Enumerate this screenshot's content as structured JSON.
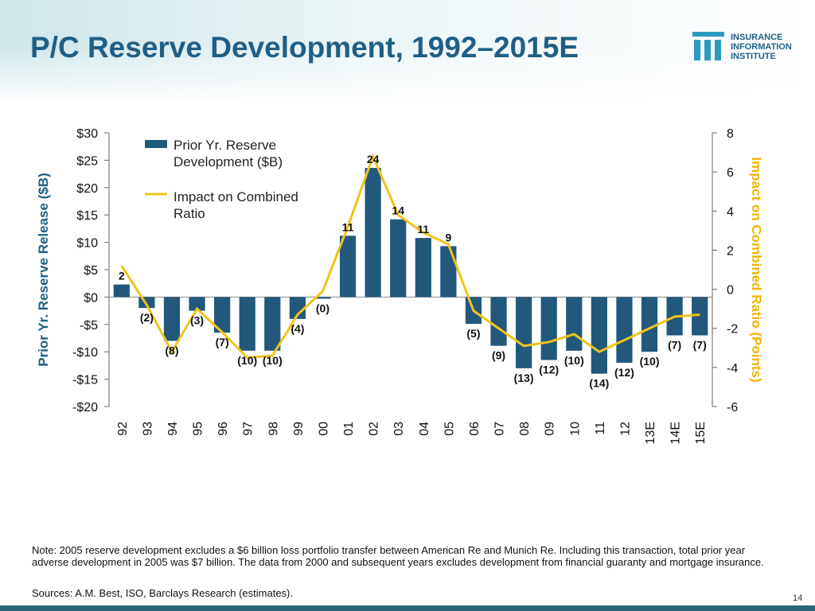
{
  "chart_data": {
    "type": "bar",
    "title": "P/C Reserve Development, 1992–2015E",
    "logo": [
      "INSURANCE",
      "INFORMATION",
      "INSTITUTE"
    ],
    "ylabel": "Prior Yr. Reserve Release ($B)",
    "y2label": "Impact on Combined Ratio (Points)",
    "categories": [
      "92",
      "93",
      "94",
      "95",
      "96",
      "97",
      "98",
      "99",
      "00",
      "01",
      "02",
      "03",
      "04",
      "05",
      "06",
      "07",
      "08",
      "09",
      "10",
      "11",
      "12",
      "13E",
      "14E",
      "15E"
    ],
    "series": [
      {
        "name": "Prior Yr. Reserve Development ($B)",
        "type": "bar",
        "color": "#22587c",
        "values": [
          2.3,
          -2,
          -8,
          -2.5,
          -6.5,
          -9.8,
          -9.8,
          -4,
          -0.3,
          11.2,
          23.6,
          14.2,
          10.8,
          9.3,
          -4.9,
          -8.9,
          -13,
          -11.5,
          -9.8,
          -14,
          -12,
          -10,
          -7,
          -7
        ],
        "value_labels": [
          "2",
          "(2)",
          "(8)",
          "(3)",
          "(7)",
          "(10)",
          "(10)",
          "(4)",
          "(0)",
          "11",
          "24",
          "14",
          "11",
          "9",
          "(5)",
          "(9)",
          "(13)",
          "(12)",
          "(10)",
          "(14)",
          "(12)",
          "(10)",
          "(7)",
          "(7)"
        ]
      },
      {
        "name": "Impact on Combined Ratio",
        "type": "line",
        "axis": "y2",
        "color": "#f0c419",
        "values": [
          1.2,
          -0.8,
          -3.2,
          -1.0,
          -2.2,
          -3.5,
          -3.4,
          -1.3,
          -0.1,
          3.2,
          6.8,
          3.8,
          2.9,
          2.3,
          -1.1,
          -2.0,
          -2.9,
          -2.7,
          -2.3,
          -3.2,
          -2.6,
          -2.0,
          -1.4,
          -1.3
        ]
      }
    ],
    "ylim": [
      -20,
      30
    ],
    "yticks": [
      {
        "value": -20,
        "label": "-$20"
      },
      {
        "value": -15,
        "label": "-$15"
      },
      {
        "value": -10,
        "label": "-$10"
      },
      {
        "value": -5,
        "label": "-$5"
      },
      {
        "value": 0,
        "label": "$0"
      },
      {
        "value": 5,
        "label": "$5"
      },
      {
        "value": 10,
        "label": "$10"
      },
      {
        "value": 15,
        "label": "$15"
      },
      {
        "value": 20,
        "label": "$20"
      },
      {
        "value": 25,
        "label": "$25"
      },
      {
        "value": 30,
        "label": "$30"
      }
    ],
    "y2lim": [
      -6,
      8
    ],
    "y2ticks": [
      -6,
      -4,
      -2,
      0,
      2,
      4,
      6,
      8
    ],
    "note": "Note: 2005 reserve development excludes a $6 billion loss portfolio transfer between American Re and Munich Re. Including this transaction, total prior year adverse development in 2005 was $7 billion. The data from 2000 and subsequent years excludes development from financial guaranty and mortgage insurance.",
    "sources": "Sources: A.M. Best, ISO, Barclays Research (estimates).",
    "page_number": "14"
  }
}
